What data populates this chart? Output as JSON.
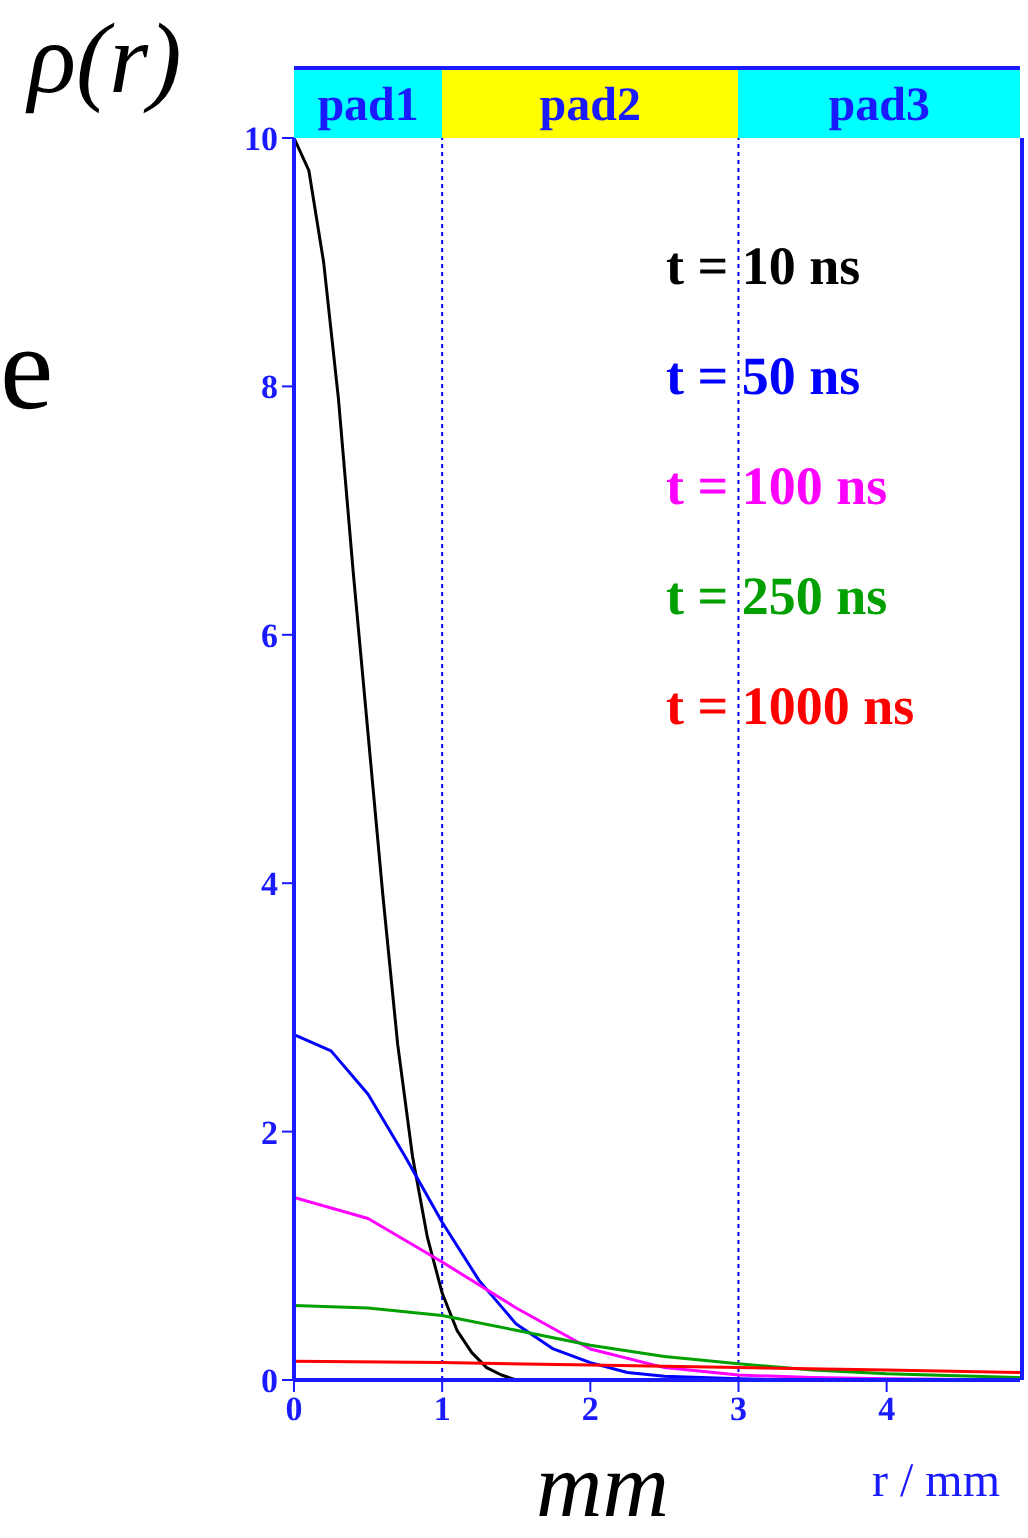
{
  "chart_data": {
    "type": "line",
    "ylabel": "ρ(r)",
    "xlabel": "r / mm",
    "annotations": [
      "e",
      "mm",
      "pad1",
      "pad2",
      "pad3"
    ],
    "xlim": [
      0,
      4.9
    ],
    "xticks": [
      0,
      1,
      2,
      3,
      4
    ],
    "ylim": [
      0,
      10
    ],
    "yticks": [
      0,
      2,
      4,
      6,
      8,
      10
    ],
    "grid": false,
    "legend": "top right",
    "marker": "none",
    "line_style": "solid",
    "series": [
      {
        "name": "t = 10 ns",
        "color": "#000000",
        "x": [
          0,
          0.1,
          0.2,
          0.3,
          0.4,
          0.5,
          0.6,
          0.7,
          0.8,
          0.9,
          1.0,
          1.1,
          1.2,
          1.3,
          1.4,
          1.5
        ],
        "values": [
          10,
          9.74,
          9.0,
          7.9,
          6.5,
          5.2,
          3.9,
          2.7,
          1.8,
          1.15,
          0.7,
          0.4,
          0.22,
          0.1,
          0.04,
          0
        ]
      },
      {
        "name": "t = 50 ns",
        "color": "#0000ff",
        "x": [
          0,
          0.25,
          0.5,
          0.75,
          1,
          1.25,
          1.5,
          1.75,
          2,
          2.25,
          2.5,
          3,
          3.5
        ],
        "values": [
          2.78,
          2.65,
          2.3,
          1.8,
          1.27,
          0.8,
          0.45,
          0.25,
          0.14,
          0.06,
          0.03,
          0.01,
          0
        ]
      },
      {
        "name": "t = 100 ns",
        "color": "#ff00ff",
        "x": [
          0,
          0.5,
          1,
          1.5,
          2,
          2.5,
          3,
          3.5,
          4,
          4.9
        ],
        "values": [
          1.47,
          1.3,
          0.95,
          0.58,
          0.25,
          0.1,
          0.04,
          0.02,
          0.01,
          0
        ]
      },
      {
        "name": "t = 250 ns",
        "color": "#00a000",
        "x": [
          0,
          0.5,
          1,
          1.5,
          2,
          2.5,
          3,
          3.5,
          4,
          4.9
        ],
        "values": [
          0.6,
          0.58,
          0.52,
          0.4,
          0.28,
          0.19,
          0.13,
          0.08,
          0.05,
          0.02
        ]
      },
      {
        "name": "t = 1000 ns",
        "color": "#ff0000",
        "x": [
          0,
          1,
          2,
          3,
          4,
          4.9
        ],
        "values": [
          0.15,
          0.14,
          0.12,
          0.1,
          0.08,
          0.06
        ]
      }
    ],
    "ref_lines": [
      {
        "axis": "x",
        "value": 1,
        "color": "#0000ff",
        "line_style": "dotted"
      },
      {
        "axis": "x",
        "value": 3,
        "color": "#0000ff",
        "line_style": "dotted"
      }
    ]
  }
}
